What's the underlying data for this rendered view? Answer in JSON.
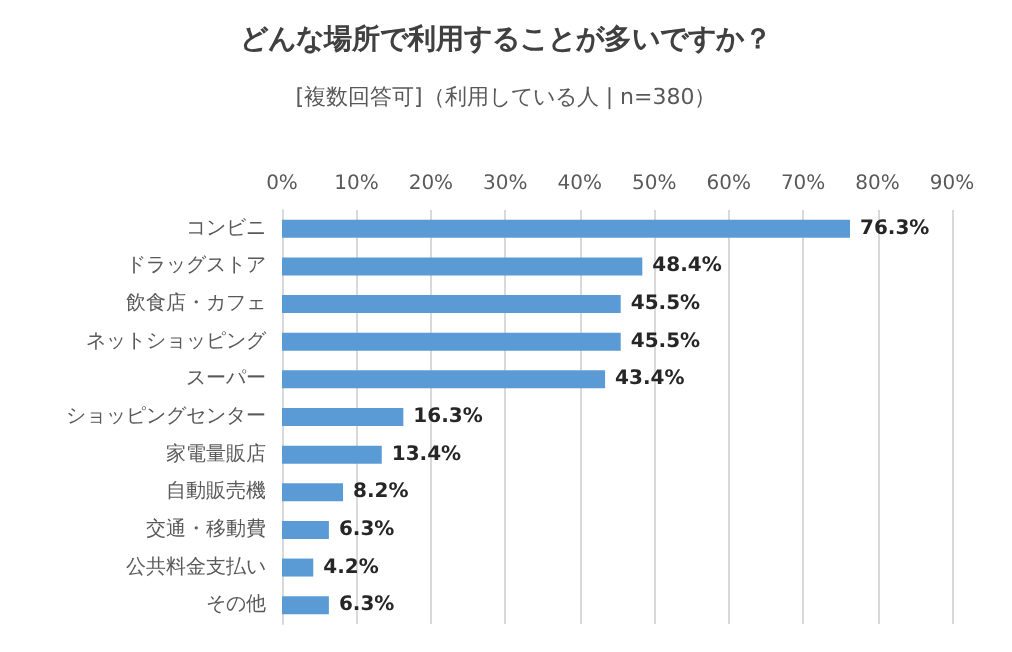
{
  "chart_data": {
    "type": "bar",
    "orientation": "horizontal",
    "title": "どんな場所で利用することが多いですか？",
    "subtitle": "[複数回答可]（利用している人 | n=380）",
    "categories": [
      "コンビニ",
      "ドラッグストア",
      "飲食店・カフェ",
      "ネットショッピング",
      "スーパー",
      "ショッピングセンター",
      "家電量販店",
      "自動販売機",
      "交通・移動費",
      "公共料金支払い",
      "その他"
    ],
    "values": [
      76.3,
      48.4,
      45.5,
      45.5,
      43.4,
      16.3,
      13.4,
      8.2,
      6.3,
      4.2,
      6.3
    ],
    "value_labels": [
      "76.3%",
      "48.4%",
      "45.5%",
      "45.5%",
      "43.4%",
      "16.3%",
      "13.4%",
      "8.2%",
      "6.3%",
      "4.2%",
      "6.3%"
    ],
    "color": "#5b9bd5",
    "xlim": [
      0,
      90
    ],
    "xticks": [
      {
        "value": 0,
        "label": "0%"
      },
      {
        "value": 10,
        "label": "10%"
      },
      {
        "value": 20,
        "label": "20%"
      },
      {
        "value": 30,
        "label": "30%"
      },
      {
        "value": 40,
        "label": "40%"
      },
      {
        "value": 50,
        "label": "50%"
      },
      {
        "value": 60,
        "label": "60%"
      },
      {
        "value": 70,
        "label": "70%"
      },
      {
        "value": 80,
        "label": "80%"
      },
      {
        "value": 90,
        "label": "90%"
      }
    ],
    "grid": "x"
  }
}
